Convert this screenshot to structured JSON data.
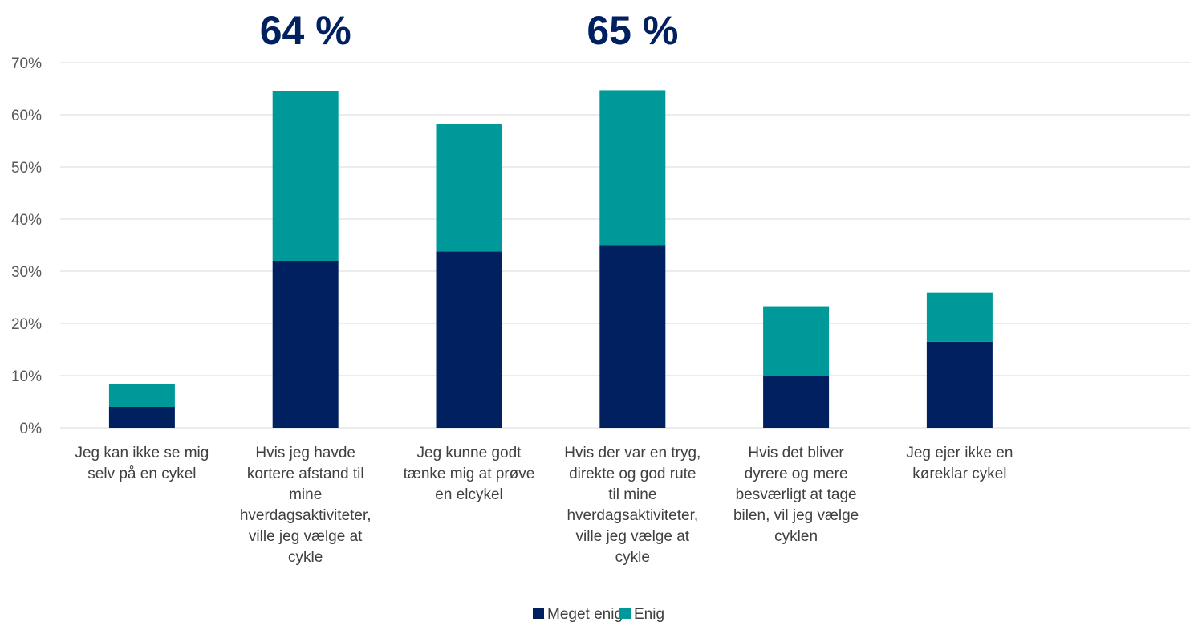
{
  "chart_data": {
    "type": "bar",
    "stacked": true,
    "categories": [
      [
        "Jeg kan ikke se mig",
        "selv på en cykel"
      ],
      [
        "Hvis jeg havde",
        "kortere afstand til",
        "mine",
        "hverdagsaktiviteter,",
        "ville jeg vælge at",
        "cykle"
      ],
      [
        "Jeg kunne godt",
        "tænke mig at prøve",
        "en elcykel"
      ],
      [
        "Hvis der var en tryg,",
        "direkte og god rute",
        "til mine",
        "hverdagsaktiviteter,",
        "ville jeg vælge at",
        "cykle"
      ],
      [
        "Hvis det bliver",
        "dyrere og mere",
        "besværligt at tage",
        "bilen, vil jeg vælge",
        "cyklen"
      ],
      [
        "Jeg ejer ikke en",
        "køreklar cykel"
      ]
    ],
    "series": [
      {
        "name": "Meget enig",
        "color": "#002060",
        "values": [
          4,
          32,
          33.8,
          35,
          10,
          16.5
        ]
      },
      {
        "name": "Enig",
        "color": "#009999",
        "values": [
          4.4,
          32.5,
          24.5,
          29.7,
          13.3,
          9.4
        ]
      }
    ],
    "ylim": [
      0,
      70
    ],
    "yticks": [
      "0%",
      "10%",
      "20%",
      "30%",
      "40%",
      "50%",
      "60%",
      "70%"
    ],
    "ytick_values": [
      0,
      10,
      20,
      30,
      40,
      50,
      60,
      70
    ],
    "grid": true,
    "legend": "bottom-center",
    "annotations": [
      {
        "text": "64 %",
        "category": 1
      },
      {
        "text": "65 %",
        "category": 3
      }
    ]
  }
}
